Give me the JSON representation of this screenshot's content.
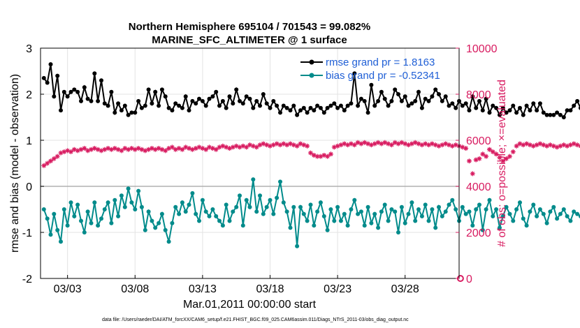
{
  "title_line1": "Northern Hemisphere 695104 / 701543 = 99.082%",
  "title_line2": "MARINE_SFC_ALTIMETER @ 1 surface",
  "footer": "data file: /Users/raeder/DAI/ATM_forcXX/CAM6_setup/f.e21.FHIST_BGC.f09_025.CAM6assim.011/Diags_NTrS_2011-03/obs_diag_output.nc",
  "colors": {
    "rmse": "#000000",
    "bias": "#008b8b",
    "obs": "#d81b60",
    "legend_text": "#1f5fd6",
    "zero_line": "#b0b0b0"
  },
  "chart_data": {
    "type": "line",
    "xlabel": "Mar.01,2011 00:00:00 start",
    "ylabel_left": "rmse and bias (model - observation)",
    "ylabel_right": "# of obs: o=possible; ×=evaluated",
    "x_tick_labels": [
      "03/03",
      "03/08",
      "03/13",
      "03/18",
      "03/23",
      "03/28"
    ],
    "x_tick_days": [
      3,
      8,
      13,
      18,
      23,
      28
    ],
    "xlim": [
      1,
      32
    ],
    "ylim_left": [
      -2,
      3
    ],
    "y_ticks_left": [
      "-2",
      "-1",
      "0",
      "1",
      "2",
      "3"
    ],
    "ylim_right": [
      0,
      10000
    ],
    "y_ticks_right": [
      "0",
      "2000",
      "4000",
      "6000",
      "8000",
      "10000"
    ],
    "grid": true,
    "legend_position": "top-right",
    "legend": [
      {
        "series": "rmse",
        "label": "rmse grand pr = 1.8163"
      },
      {
        "series": "bias",
        "label": "bias grand pr = -0.52341"
      }
    ],
    "series": [
      {
        "key": "rmse",
        "axis": "left",
        "marker": "filled-circle",
        "x_start_day": 1.25,
        "x_step_days": 0.25,
        "values": [
          2.35,
          2.25,
          2.65,
          1.95,
          2.4,
          1.65,
          2.05,
          1.95,
          2.05,
          2.1,
          2.05,
          1.85,
          2.15,
          1.9,
          1.85,
          2.45,
          1.85,
          2.3,
          1.8,
          1.75,
          2.05,
          1.6,
          1.8,
          1.65,
          1.75,
          1.55,
          1.6,
          1.6,
          1.85,
          1.7,
          1.75,
          2.1,
          1.8,
          2.05,
          1.75,
          2.1,
          1.95,
          1.7,
          1.65,
          1.8,
          1.75,
          1.7,
          1.95,
          1.65,
          1.85,
          1.8,
          1.9,
          1.85,
          1.75,
          1.9,
          1.95,
          2.05,
          1.75,
          1.85,
          1.7,
          1.95,
          1.8,
          2.1,
          1.85,
          1.8,
          1.95,
          1.9,
          1.7,
          1.85,
          1.75,
          2.0,
          1.8,
          1.7,
          1.85,
          1.75,
          1.6,
          1.75,
          1.7,
          1.65,
          1.75,
          1.55,
          1.65,
          1.7,
          1.6,
          1.7,
          1.65,
          1.75,
          1.7,
          1.6,
          1.7,
          1.75,
          1.8,
          1.7,
          1.75,
          1.65,
          1.75,
          1.8,
          2.45,
          1.75,
          1.9,
          1.85,
          1.6,
          2.2,
          1.75,
          1.85,
          2.05,
          1.9,
          1.75,
          1.85,
          2.1,
          2.0,
          1.85,
          1.95,
          1.75,
          1.8,
          1.85,
          2.05,
          1.7,
          1.9,
          1.85,
          1.95,
          2.1,
          2.0,
          1.85,
          1.95,
          1.75,
          1.8,
          1.7,
          1.85,
          1.75,
          1.8,
          1.65,
          1.95,
          1.7,
          1.85,
          1.65,
          1.9,
          1.6,
          1.75,
          1.7,
          1.55,
          1.7,
          1.6,
          1.65,
          1.75,
          1.6,
          1.7,
          1.55,
          1.75,
          1.65,
          1.8,
          1.65,
          1.8,
          1.6,
          1.55,
          1.55,
          1.55,
          1.6,
          1.55,
          1.5,
          1.65,
          1.65,
          1.75,
          1.85,
          1.7,
          1.85,
          1.8,
          1.9,
          1.7,
          1.9,
          1.85
        ]
      },
      {
        "key": "bias",
        "axis": "left",
        "marker": "filled-circle",
        "x_start_day": 1.25,
        "x_step_days": 0.25,
        "values": [
          -0.5,
          -0.7,
          -1.05,
          -0.6,
          -0.95,
          -1.2,
          -0.5,
          -0.85,
          -0.35,
          -0.65,
          -0.4,
          -0.75,
          -1.0,
          -0.55,
          -0.8,
          -0.35,
          -0.85,
          -0.7,
          -0.5,
          -0.35,
          -0.8,
          -0.3,
          -0.65,
          -0.2,
          -0.45,
          -0.05,
          -0.35,
          -0.5,
          -0.1,
          -0.45,
          -0.95,
          -0.55,
          -0.75,
          -0.9,
          -0.8,
          -0.6,
          -0.95,
          -1.2,
          -0.8,
          -0.45,
          -0.6,
          -0.35,
          -0.55,
          -0.4,
          -0.15,
          -0.6,
          -0.75,
          -0.3,
          -0.55,
          -0.65,
          -0.5,
          -0.65,
          -0.75,
          -0.85,
          -0.4,
          -0.75,
          -0.55,
          -0.45,
          -0.2,
          -0.85,
          -0.3,
          -0.45,
          0.15,
          -0.55,
          -0.2,
          -0.6,
          -0.45,
          -0.3,
          -0.6,
          -0.25,
          0.1,
          -0.35,
          -0.55,
          -0.9,
          -0.45,
          -1.3,
          -0.45,
          -0.6,
          -0.75,
          -0.4,
          -0.85,
          -0.55,
          -0.35,
          -0.65,
          -0.95,
          -0.5,
          -0.75,
          -0.45,
          -0.75,
          -0.6,
          -0.85,
          -0.5,
          -0.3,
          -0.6,
          -0.55,
          -0.85,
          -0.45,
          -0.8,
          -0.6,
          -0.9,
          -0.55,
          -0.4,
          -0.75,
          -0.5,
          -0.55,
          -1.0,
          -0.45,
          -0.8,
          -0.6,
          -0.35,
          -0.75,
          -0.5,
          -0.65,
          -0.4,
          -0.75,
          -0.5,
          -0.9,
          -0.45,
          -0.65,
          -0.55,
          -0.4,
          -0.3,
          -0.5,
          -0.75,
          -0.45,
          -0.6,
          -0.55,
          -0.85,
          -0.5,
          -0.4,
          -0.95,
          -0.5,
          -0.3,
          -0.65,
          -0.5,
          -0.9,
          -0.65,
          -0.45,
          -0.6,
          -0.75,
          -0.5,
          -0.35,
          -0.7,
          -0.85,
          -0.55,
          -0.4,
          -0.65,
          -0.5,
          -0.6,
          -0.8,
          -0.55,
          -0.45,
          -0.7,
          -0.6,
          -0.5,
          -0.65,
          -0.75,
          -0.55,
          -0.6,
          -0.65,
          -0.45,
          -0.55,
          -0.65,
          -0.5,
          -0.7,
          -0.9,
          -0.45
        ]
      },
      {
        "key": "obs_evaluated",
        "axis": "right",
        "marker": "star",
        "x_start_day": 1.25,
        "x_step_days": 0.25,
        "values": [
          4900,
          5000,
          5100,
          5200,
          5300,
          5450,
          5500,
          5550,
          5500,
          5600,
          5550,
          5600,
          5650,
          5550,
          5600,
          5650,
          5600,
          5550,
          5600,
          5650,
          5600,
          5650,
          5600,
          5550,
          5650,
          5600,
          5650,
          5600,
          5650,
          5600,
          5550,
          5600,
          5650,
          5600,
          5650,
          5600,
          5550,
          5650,
          5700,
          5600,
          5650,
          5600,
          5700,
          5650,
          5600,
          5650,
          5700,
          5650,
          5600,
          5700,
          5650,
          5600,
          5700,
          5750,
          5700,
          5650,
          5700,
          5750,
          5700,
          5750,
          5700,
          5800,
          5750,
          5700,
          5800,
          5850,
          5800,
          5750,
          5800,
          5850,
          5800,
          5850,
          5800,
          5850,
          5800,
          5750,
          5850,
          5800,
          5750,
          5450,
          5350,
          5300,
          5300,
          5350,
          5300,
          5400,
          5700,
          5750,
          5800,
          5850,
          5800,
          5850,
          5800,
          5900,
          5850,
          5900,
          5850,
          5800,
          5850,
          5900,
          5850,
          5900,
          5850,
          5800,
          5900,
          5850,
          5900,
          5850,
          5800,
          5850,
          5900,
          5850,
          5800,
          5850,
          5800,
          5850,
          5800,
          5750,
          5800,
          5850,
          5800,
          5750,
          5800,
          5750,
          5700,
          5650,
          5100,
          4550,
          5150,
          5200,
          5400,
          5300,
          5600,
          5500,
          5400,
          5250,
          5100,
          5200,
          5300,
          5500,
          5750,
          5850,
          5800,
          5850,
          5800,
          5750,
          5800,
          5850,
          5800,
          5750,
          5800,
          5750,
          5700,
          5750,
          5800,
          5750,
          5800,
          5850,
          5800,
          5750,
          5800,
          5850,
          5800,
          5750,
          5700,
          5750,
          5700,
          5650
        ]
      },
      {
        "key": "obs_possible",
        "axis": "right",
        "marker": "open-circle",
        "x": [
          32.1
        ],
        "values": [
          0
        ]
      }
    ]
  }
}
